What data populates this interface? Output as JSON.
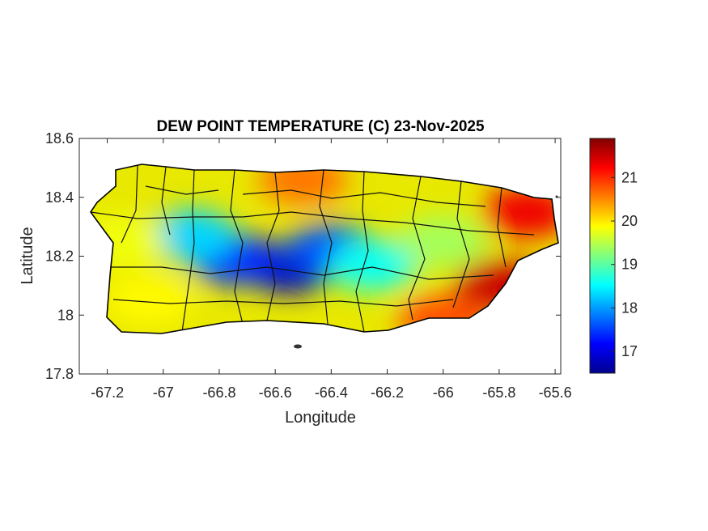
{
  "chart_data": {
    "type": "heatmap",
    "title": "DEW POINT TEMPERATURE (C) 23-Nov-2025",
    "xlabel": "Longitude",
    "ylabel": "Latitude",
    "xlim": [
      -67.3,
      -65.58
    ],
    "ylim": [
      17.8,
      18.6
    ],
    "xticks": [
      -67.2,
      -67,
      -66.8,
      -66.6,
      -66.4,
      -66.2,
      -66,
      -65.8,
      -65.6
    ],
    "xtick_labels": [
      "-67.2",
      "-67",
      "-66.8",
      "-66.6",
      "-66.4",
      "-66.2",
      "-66",
      "-65.8",
      "-65.6"
    ],
    "yticks": [
      17.8,
      18,
      18.2,
      18.4,
      18.6
    ],
    "ytick_labels": [
      "17.8",
      "18",
      "18.2",
      "18.4",
      "18.6"
    ],
    "colorbar": {
      "colormap": "jet",
      "range": [
        16.5,
        21.9
      ],
      "ticks": [
        17,
        18,
        19,
        20,
        21
      ],
      "tick_labels": [
        "17",
        "18",
        "19",
        "20",
        "21"
      ]
    },
    "grid": false,
    "field_description_points": [
      {
        "lon": -66.55,
        "lat": 18.16,
        "value": 16.8
      },
      {
        "lon": -66.75,
        "lat": 18.19,
        "value": 17.4
      },
      {
        "lon": -66.4,
        "lat": 18.22,
        "value": 17.6
      },
      {
        "lon": -66.9,
        "lat": 18.27,
        "value": 18.3
      },
      {
        "lon": -66.25,
        "lat": 18.17,
        "value": 18.6
      },
      {
        "lon": -66.0,
        "lat": 18.25,
        "value": 19.4
      },
      {
        "lon": -67.15,
        "lat": 18.25,
        "value": 19.8
      },
      {
        "lon": -67.05,
        "lat": 18.05,
        "value": 19.9
      },
      {
        "lon": -66.5,
        "lat": 18.46,
        "value": 20.6
      },
      {
        "lon": -65.7,
        "lat": 18.35,
        "value": 21.3
      },
      {
        "lon": -65.8,
        "lat": 18.1,
        "value": 21.5
      },
      {
        "lon": -66.0,
        "lat": 17.98,
        "value": 20.8
      }
    ]
  }
}
